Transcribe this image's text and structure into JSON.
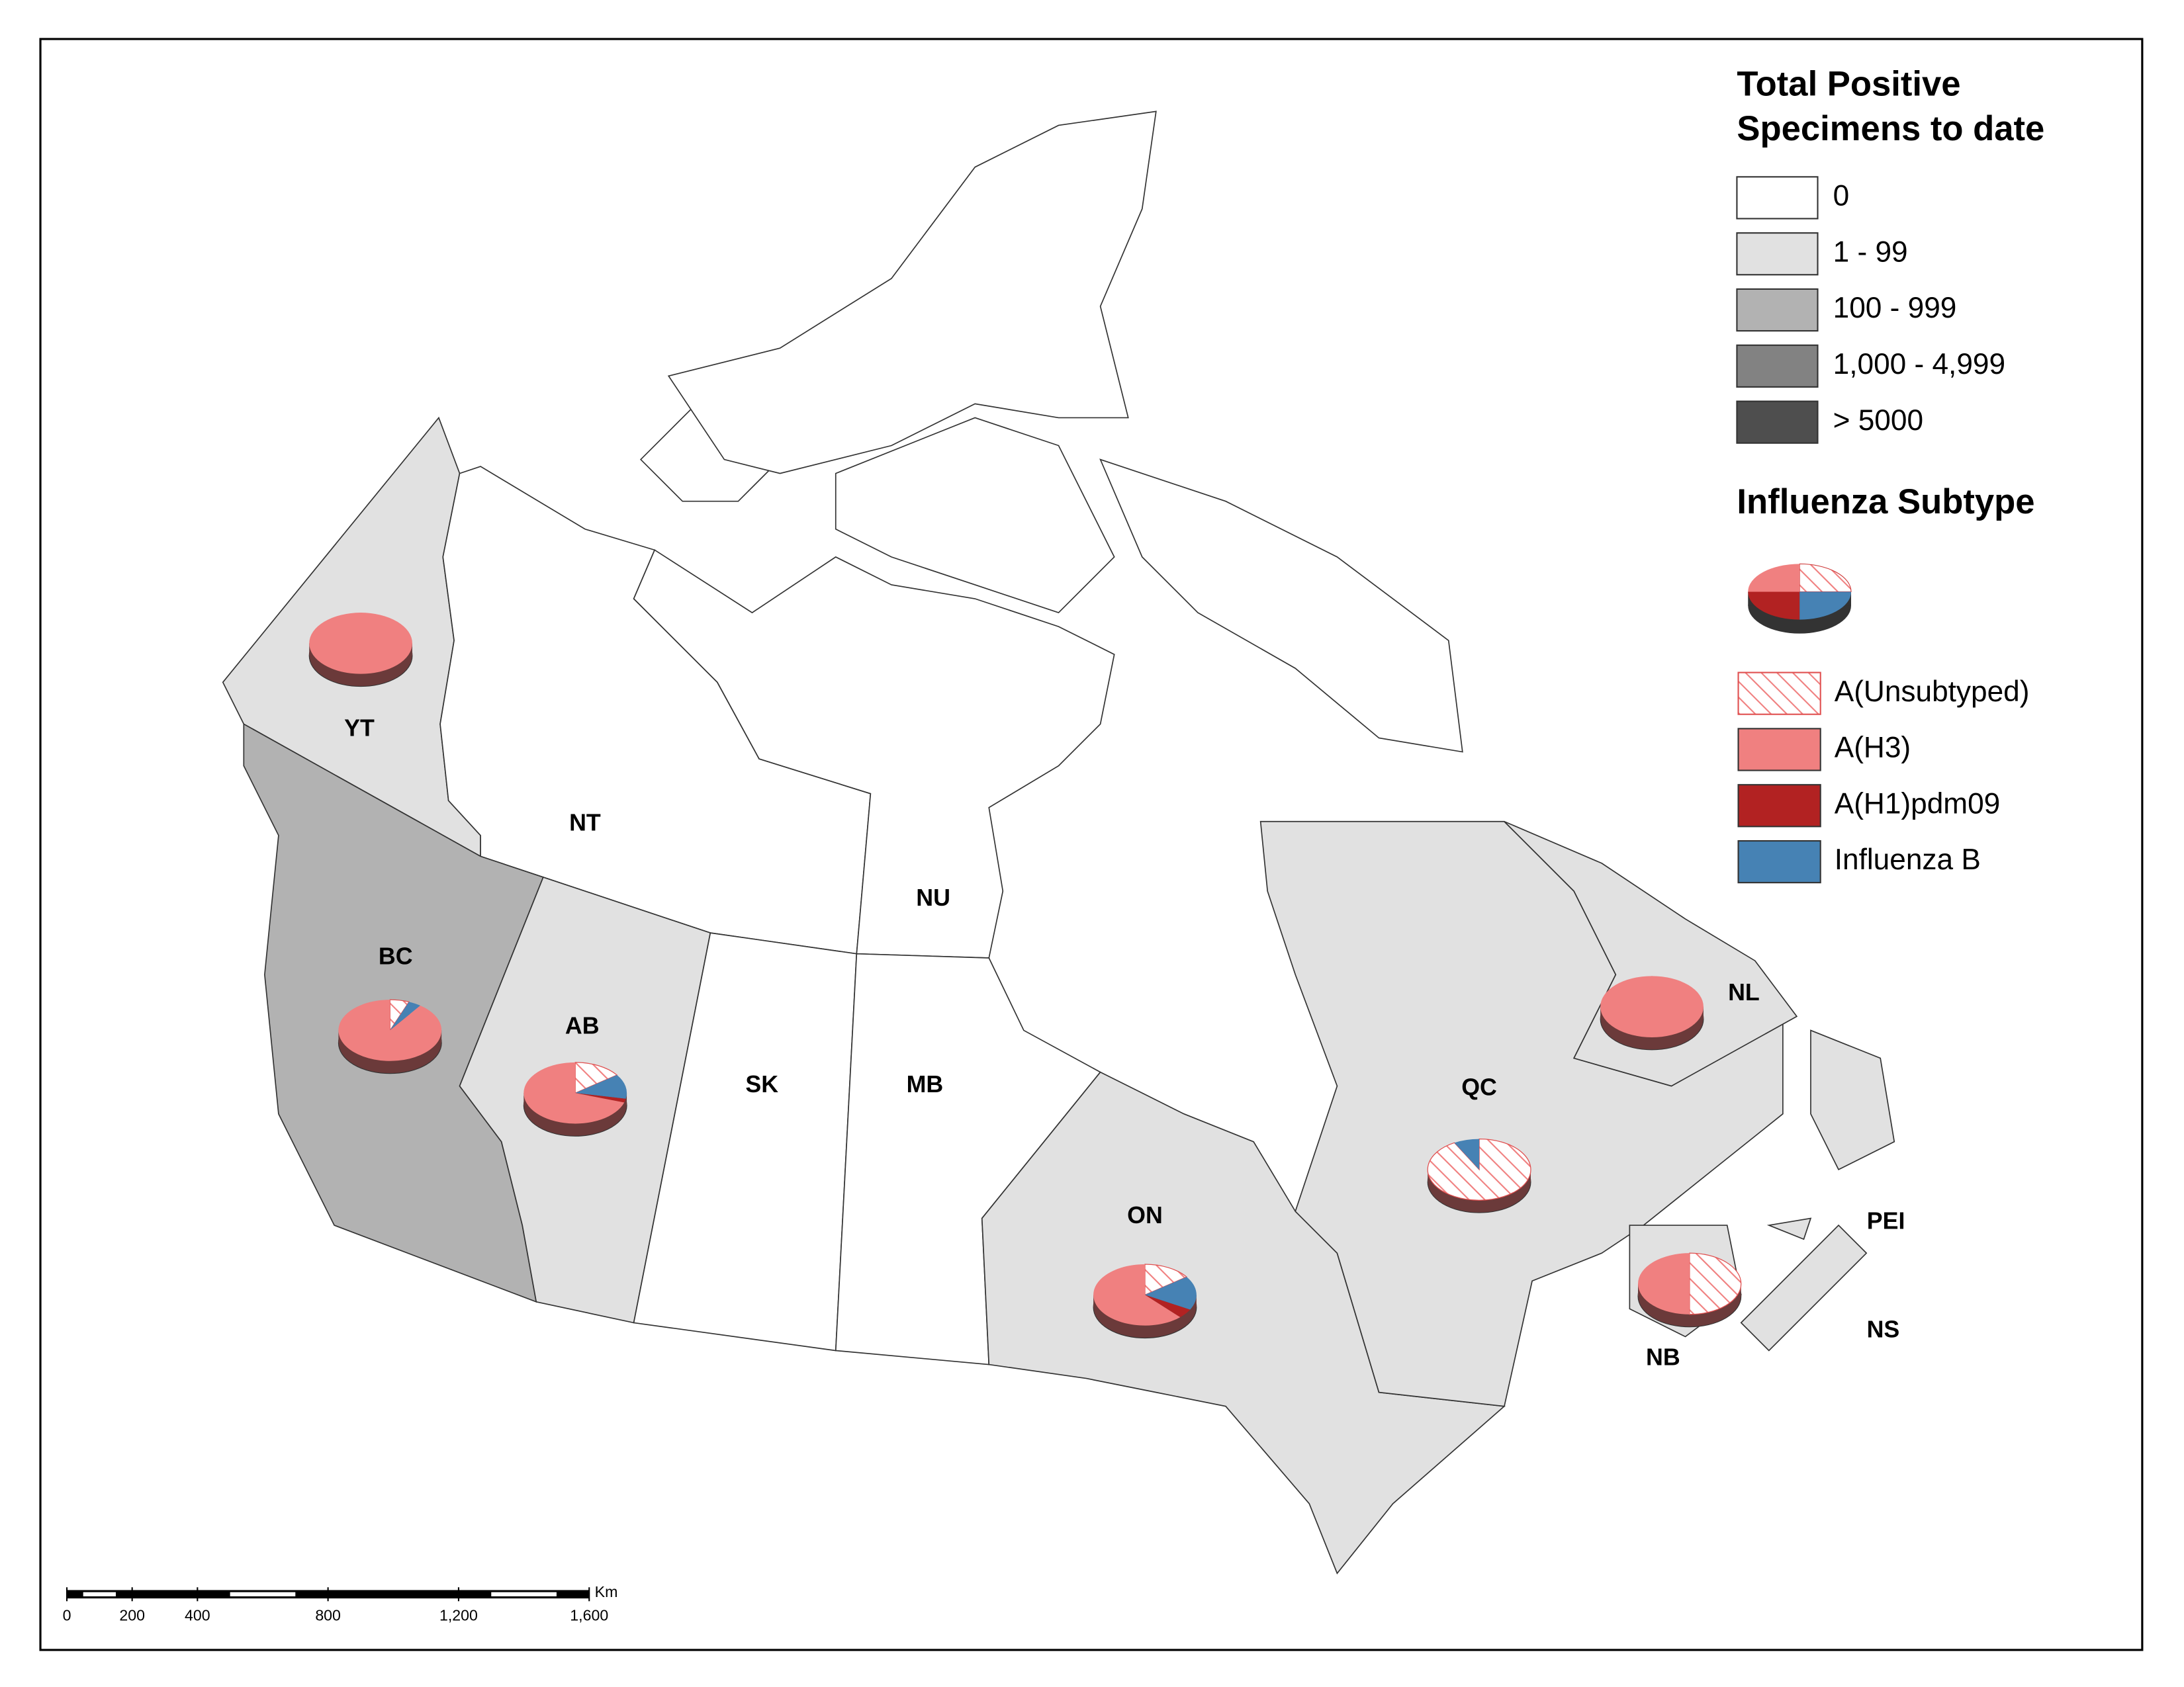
{
  "legend": {
    "title_lines": [
      "Total Positive",
      "Specimens to date"
    ],
    "classes": [
      {
        "label": "0",
        "color": "#ffffff"
      },
      {
        "label": "1 - 99",
        "color": "#e1e1e1"
      },
      {
        "label": "100 - 999",
        "color": "#b2b2b2"
      },
      {
        "label": "1,000 - 4,999",
        "color": "#828282"
      },
      {
        "label": "> 5000",
        "color": "#4e4e4e"
      }
    ],
    "subtype_title": "Influenza Subtype",
    "subtypes": [
      {
        "label": "A(Unsubtyped)",
        "color": "#f08080",
        "hatch": true
      },
      {
        "label": "A(H3)",
        "color": "#f08080",
        "hatch": false
      },
      {
        "label": "A(H1)pdm09",
        "color": "#b22222",
        "hatch": false
      },
      {
        "label": "Influenza B",
        "color": "#4682b4",
        "hatch": false
      }
    ]
  },
  "provinces": [
    {
      "label": "YT",
      "fill_class": 1,
      "pie": [
        0,
        100,
        0,
        0
      ]
    },
    {
      "label": "NT",
      "fill_class": 0
    },
    {
      "label": "NU",
      "fill_class": 0
    },
    {
      "label": "BC",
      "fill_class": 2,
      "pie": [
        6,
        90,
        0,
        4
      ]
    },
    {
      "label": "AB",
      "fill_class": 1,
      "pie": [
        15,
        70,
        2,
        13
      ]
    },
    {
      "label": "SK",
      "fill_class": 0
    },
    {
      "label": "MB",
      "fill_class": 0
    },
    {
      "label": "ON",
      "fill_class": 1,
      "pie": [
        15,
        62,
        5,
        18
      ]
    },
    {
      "label": "QC",
      "fill_class": 1,
      "pie": [
        92,
        0,
        0,
        8
      ]
    },
    {
      "label": "NL",
      "fill_class": 1,
      "pie": [
        0,
        100,
        0,
        0
      ]
    },
    {
      "label": "NB",
      "fill_class": 1,
      "pie": [
        50,
        50,
        0,
        0
      ]
    },
    {
      "label": "PEI",
      "fill_class": 1
    },
    {
      "label": "NS",
      "fill_class": 1
    }
  ],
  "scale_bar": {
    "unit": "Km",
    "ticks": [
      0,
      200,
      400,
      800,
      {
        "value": 1200,
        "label": "1,200"
      },
      {
        "value": 1600,
        "label": "1,600"
      }
    ]
  }
}
